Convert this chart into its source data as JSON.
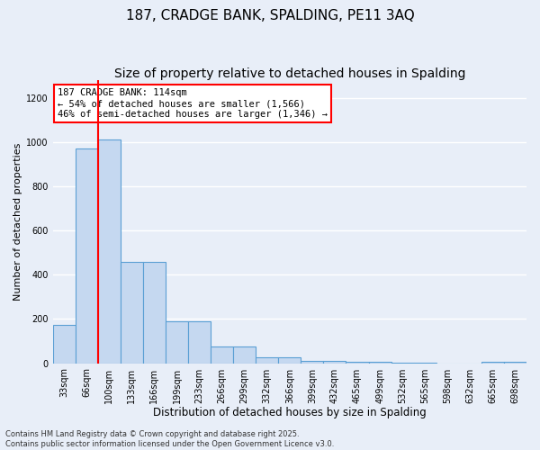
{
  "title_line1": "187, CRADGE BANK, SPALDING, PE11 3AQ",
  "title_line2": "Size of property relative to detached houses in Spalding",
  "xlabel": "Distribution of detached houses by size in Spalding",
  "ylabel": "Number of detached properties",
  "categories": [
    "33sqm",
    "66sqm",
    "100sqm",
    "133sqm",
    "166sqm",
    "199sqm",
    "233sqm",
    "266sqm",
    "299sqm",
    "332sqm",
    "366sqm",
    "399sqm",
    "432sqm",
    "465sqm",
    "499sqm",
    "532sqm",
    "565sqm",
    "598sqm",
    "632sqm",
    "665sqm",
    "698sqm"
  ],
  "values": [
    175,
    970,
    1010,
    460,
    460,
    190,
    190,
    75,
    75,
    25,
    25,
    12,
    12,
    5,
    5,
    1,
    1,
    0,
    0,
    5,
    5
  ],
  "bar_color": "#c5d8f0",
  "bar_edge_color": "#5a9fd4",
  "background_color": "#e8eef8",
  "grid_color": "#ffffff",
  "annotation_box_text": "187 CRADGE BANK: 114sqm\n← 54% of detached houses are smaller (1,566)\n46% of semi-detached houses are larger (1,346) →",
  "annotation_box_color": "#ffffff",
  "annotation_box_edge_color": "red",
  "vline_color": "red",
  "ylim": [
    0,
    1280
  ],
  "yticks": [
    0,
    200,
    400,
    600,
    800,
    1000,
    1200
  ],
  "footnote": "Contains HM Land Registry data © Crown copyright and database right 2025.\nContains public sector information licensed under the Open Government Licence v3.0.",
  "annotation_fontsize": 7.5,
  "title_fontsize1": 11,
  "title_fontsize2": 10,
  "xlabel_fontsize": 8.5,
  "ylabel_fontsize": 8,
  "tick_fontsize": 7,
  "footnote_fontsize": 6
}
